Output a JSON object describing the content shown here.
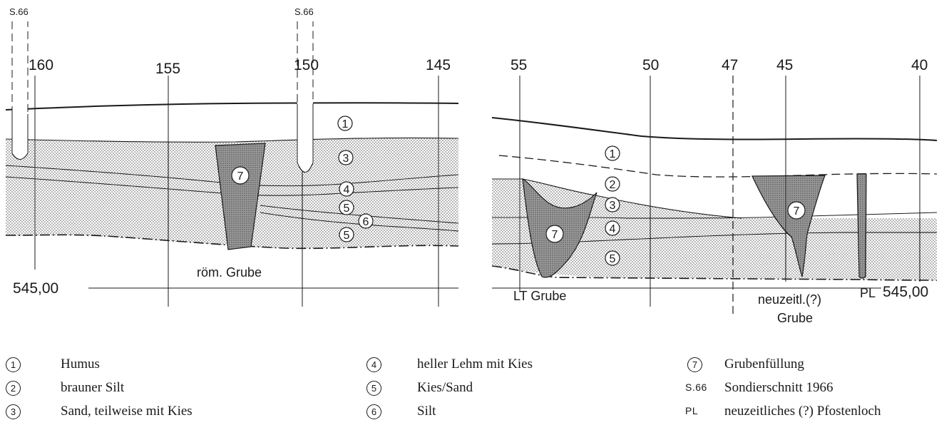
{
  "profile_left": {
    "stations": [
      "160",
      "155",
      "150",
      "145"
    ],
    "sondage_labels": [
      "S.66",
      "S.66"
    ],
    "elevation_label": "545,00",
    "feature_label": "röm. Grube",
    "layer_markers": [
      "1",
      "3",
      "7",
      "4",
      "5",
      "6",
      "5"
    ]
  },
  "profile_right": {
    "stations": [
      "55",
      "50",
      "47",
      "45",
      "40"
    ],
    "elevation_label": "545,00",
    "feature_labels": {
      "lt_pit": "LT Grube",
      "modern_pit_line1": "neuzeitl.(?)",
      "modern_pit_line2": "Grube",
      "posthole": "PL"
    },
    "layer_markers": [
      "1",
      "2",
      "3",
      "4",
      "5",
      "7",
      "7"
    ]
  },
  "legend": [
    {
      "symbol": "1",
      "text": "Humus"
    },
    {
      "symbol": "2",
      "text": "brauner Silt"
    },
    {
      "symbol": "3",
      "text": "Sand, teilweise mit Kies"
    },
    {
      "symbol": "4",
      "text": "heller Lehm mit Kies"
    },
    {
      "symbol": "5",
      "text": "Kies/Sand"
    },
    {
      "symbol": "6",
      "text": "Silt"
    },
    {
      "symbol": "7",
      "text": "Grubenfüllung"
    },
    {
      "symbol": "S.66",
      "text": "Sondierschnitt 1966"
    },
    {
      "symbol": "PL",
      "text": "neuzeitliches (?) Pfostenloch"
    }
  ]
}
